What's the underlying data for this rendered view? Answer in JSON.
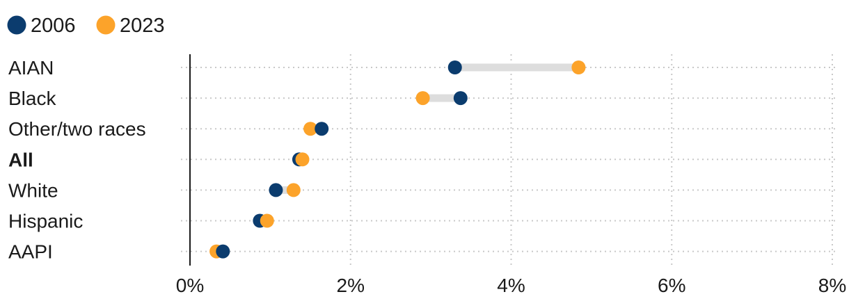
{
  "chart_data": {
    "type": "dumbbell",
    "title": "",
    "xlabel": "",
    "ylabel": "",
    "xlim": [
      0,
      8
    ],
    "x_ticks": [
      {
        "value": 0,
        "label": "0%"
      },
      {
        "value": 2,
        "label": "2%"
      },
      {
        "value": 4,
        "label": "4%"
      },
      {
        "value": 6,
        "label": "6%"
      },
      {
        "value": 8,
        "label": "8%"
      }
    ],
    "grid": true,
    "legend": "top-left",
    "categories": [
      "AIAN",
      "Black",
      "Other/two races",
      "All",
      "White",
      "Hispanic",
      "AAPI"
    ],
    "bold_categories": [
      "All"
    ],
    "series": [
      {
        "name": "2006",
        "color": "#0b3c6e",
        "values": [
          3.3,
          3.37,
          1.64,
          1.36,
          1.07,
          0.87,
          0.41
        ]
      },
      {
        "name": "2023",
        "color": "#fca32a",
        "values": [
          4.84,
          2.9,
          1.5,
          1.4,
          1.29,
          0.96,
          0.33
        ]
      }
    ],
    "connector_color": "#dddddd",
    "gridline_color": "#c8c8c8",
    "axis_color": "#1a1a1a"
  }
}
